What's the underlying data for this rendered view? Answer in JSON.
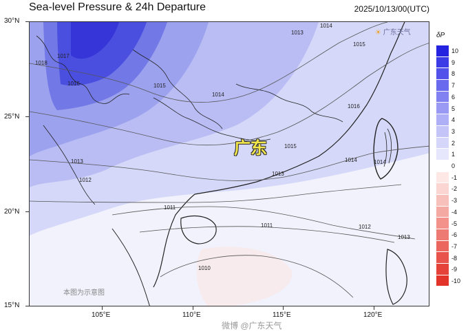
{
  "title": "Sea-level Pressure & 24h Departure",
  "datetime": "2025/10/13/00(UTC)",
  "lat_labels": [
    "30°N",
    "25°N",
    "20°N",
    "15°N"
  ],
  "lon_labels": [
    "105°E",
    "110°E",
    "115°E",
    "120°E"
  ],
  "colorbar": {
    "symbol": "δP",
    "levels": [
      "10",
      "9",
      "8",
      "7",
      "6",
      "5",
      "4",
      "3",
      "2",
      "1",
      "0",
      "-1",
      "-2",
      "-3",
      "-4",
      "-5",
      "-6",
      "-7",
      "-8",
      "-9",
      "-10"
    ],
    "colors": [
      "#2323e0",
      "#3c3ce6",
      "#5252ea",
      "#6a6aee",
      "#8181f1",
      "#9a9af4",
      "#afafF7",
      "#c4c4f9",
      "#d6d6fb",
      "#e6e6fd",
      "#ffffff",
      "#fde8e6",
      "#fbd5d2",
      "#f8c0bb",
      "#f5a9a3",
      "#f2928b",
      "#ee7b73",
      "#eb665e",
      "#e8544b",
      "#e5433a",
      "#e2342b"
    ]
  },
  "region_label": "广东",
  "isobar_labels": [
    "1017",
    "1018",
    "1016",
    "1015",
    "1014",
    "1013",
    "1012",
    "1011",
    "1010",
    "1016",
    "1015",
    "1014",
    "1013",
    "1014",
    "1015",
    "1013",
    "1012",
    "1011",
    "1013",
    "1014"
  ],
  "watermark": "本图为示意图",
  "logo_text": "广东天气",
  "footer": "微博 @广东天气"
}
